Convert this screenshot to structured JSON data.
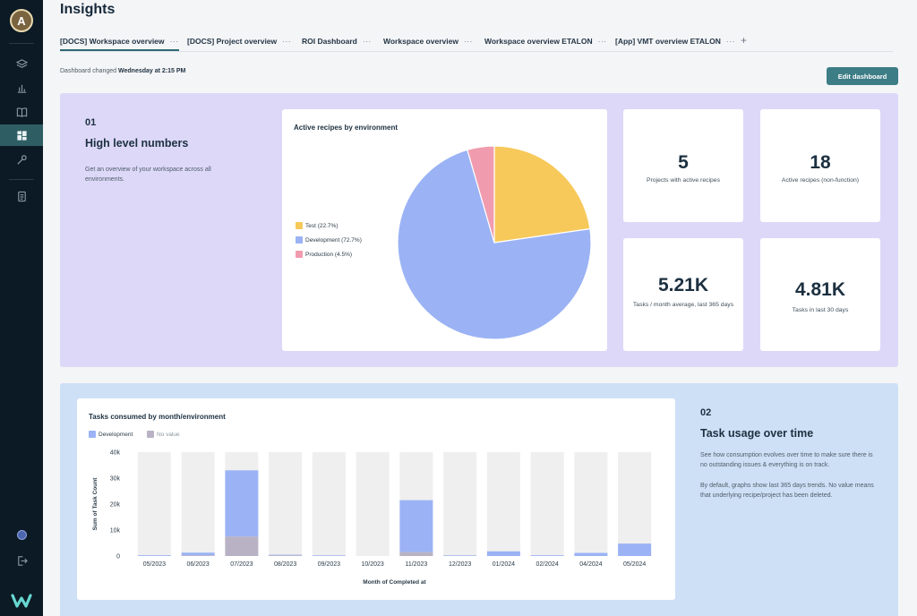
{
  "sidebar": {
    "avatar_initial": "A",
    "icons": [
      "layers-icon",
      "bar-chart-icon",
      "book-icon",
      "dashboard-icon",
      "wrench-icon",
      "document-icon"
    ],
    "active_icon": "dashboard-icon"
  },
  "header": {
    "title": "Insights"
  },
  "tabs": [
    {
      "label": "[DOCS] Workspace overview",
      "active": true
    },
    {
      "label": "[DOCS] Project overview"
    },
    {
      "label": "ROI Dashboard"
    },
    {
      "label": "Workspace overview"
    },
    {
      "label": "Workspace overview ETALON"
    },
    {
      "label": "[App] VMT overview ETALON"
    }
  ],
  "tab_more": "···",
  "tab_add": "+",
  "toolbar": {
    "changed_prefix": "Dashboard changed",
    "changed_when": "Wednesday at 2:15 PM",
    "edit_label": "Edit dashboard"
  },
  "section1": {
    "number": "01",
    "title": "High level numbers",
    "description": "Get an overview of your workspace across all environments."
  },
  "pie": {
    "title": "Active recipes by environment",
    "legend": [
      "Test (22.7%)",
      "Development (72.7%)",
      "Production (4.5%)"
    ]
  },
  "kpis": [
    {
      "value": "5",
      "label": "Projects with active recipes"
    },
    {
      "value": "18",
      "label": "Active recipes (non-function)"
    },
    {
      "value": "5.21K",
      "label": "Tasks / month average, last 365 days"
    },
    {
      "value": "4.81K",
      "label": "Tasks in last 30 days"
    }
  ],
  "section2": {
    "number": "02",
    "title": "Task usage over time",
    "desc1": "See how consumption evolves over time to make sure there is no outstanding issues & everything is on track.",
    "desc2": "By default, graphs show last 365 days trends. No value means that underlying recipe/project has been deleted."
  },
  "colors": {
    "test": "#f7c95a",
    "development": "#9bb3f5",
    "production": "#f09cae",
    "no_value": "#b8b2c4",
    "accent": "#3d7d86"
  },
  "chart_data": [
    {
      "type": "pie",
      "title": "Active recipes by environment",
      "labels": [
        "Test",
        "Development",
        "Production"
      ],
      "values": [
        22.7,
        72.7,
        4.5
      ],
      "legend_placement": "left"
    },
    {
      "type": "bar",
      "title": "Tasks consumed by month/environment",
      "stacked": true,
      "xlabel": "Month of Completed at",
      "ylabel": "Sum of Task Count",
      "categories": [
        "05/2023",
        "06/2023",
        "07/2023",
        "08/2023",
        "09/2023",
        "10/2023",
        "11/2023",
        "12/2023",
        "01/2024",
        "02/2024",
        "04/2024",
        "05/2024"
      ],
      "series": [
        {
          "name": "No value",
          "values": [
            0,
            300,
            7500,
            300,
            100,
            0,
            1500,
            100,
            0,
            0,
            0,
            0
          ]
        },
        {
          "name": "Development",
          "values": [
            300,
            1000,
            25500,
            200,
            200,
            0,
            20000,
            200,
            1800,
            300,
            1200,
            4800
          ]
        }
      ],
      "ylim": [
        0,
        40000
      ],
      "yticks": [
        0,
        10000,
        20000,
        30000,
        40000
      ],
      "ytick_labels": [
        "0",
        "10k",
        "20k",
        "30k",
        "40k"
      ],
      "legend_placement": "top-left",
      "grid": false
    }
  ]
}
